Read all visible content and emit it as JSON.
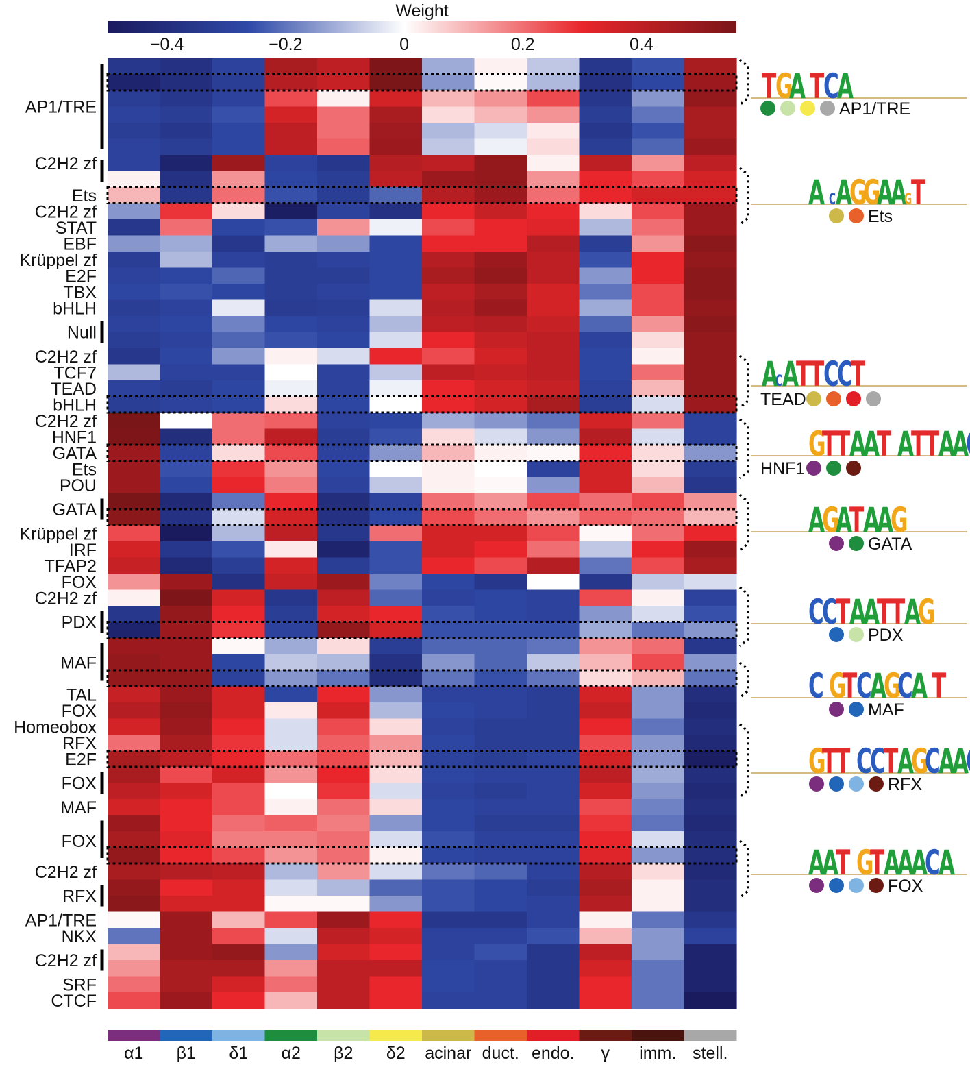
{
  "chart_data": {
    "type": "heatmap",
    "title": "",
    "colorbar": {
      "label": "Weight",
      "ticks": [
        "−0.4",
        "−0.2",
        "0",
        "0.2",
        "0.4"
      ],
      "tick_values": [
        -0.4,
        -0.2,
        0,
        0.2,
        0.4
      ],
      "range": [
        -0.5,
        0.56
      ],
      "colors": [
        "#1a1a5e",
        "#2f4aa8",
        "#ffffff",
        "#e8262b",
        "#7a1518"
      ]
    },
    "columns": [
      "α1",
      "β1",
      "δ1",
      "α2",
      "β2",
      "δ2",
      "acinar",
      "duct.",
      "endo.",
      "γ",
      "imm.",
      "stell."
    ],
    "column_colors": [
      "#7b2d7e",
      "#2166b9",
      "#7fb4e2",
      "#1e8e3e",
      "#c8e3a8",
      "#f5e94b",
      "#cdb94a",
      "#e8612a",
      "#e21f26",
      "#6b1b12",
      "#4a130d",
      "#a8a8a8"
    ],
    "row_labels": [
      {
        "text": "AP1/TRE",
        "row": 3
      },
      {
        "text": "C2H2 zf",
        "row": 6.5
      },
      {
        "text": "Ets",
        "row": 8.5
      },
      {
        "text": "C2H2 zf",
        "row": 9.5
      },
      {
        "text": "STAT",
        "row": 10.5
      },
      {
        "text": "EBF",
        "row": 11.5
      },
      {
        "text": "Krüppel zf",
        "row": 12.5
      },
      {
        "text": "E2F",
        "row": 13.5
      },
      {
        "text": "TBX",
        "row": 14.5
      },
      {
        "text": "bHLH",
        "row": 15.5
      },
      {
        "text": "Null",
        "row": 17
      },
      {
        "text": "C2H2 zf",
        "row": 18.5
      },
      {
        "text": "TCF7",
        "row": 19.5
      },
      {
        "text": "TEAD",
        "row": 20.5
      },
      {
        "text": "bHLH",
        "row": 21.5
      },
      {
        "text": "C2H2 zf",
        "row": 22.5
      },
      {
        "text": "HNF1",
        "row": 23.5
      },
      {
        "text": "GATA",
        "row": 24.5
      },
      {
        "text": "Ets",
        "row": 25.5
      },
      {
        "text": "POU",
        "row": 26.5
      },
      {
        "text": "GATA",
        "row": 28
      },
      {
        "text": "Krüppel zf",
        "row": 29.5
      },
      {
        "text": "IRF",
        "row": 30.5
      },
      {
        "text": "TFAP2",
        "row": 31.5
      },
      {
        "text": "FOX",
        "row": 32.5
      },
      {
        "text": "C2H2 zf",
        "row": 33.5
      },
      {
        "text": "PDX",
        "row": 35
      },
      {
        "text": "MAF",
        "row": 37.5
      },
      {
        "text": "TAL",
        "row": 39.5
      },
      {
        "text": "FOX",
        "row": 40.5
      },
      {
        "text": "Homeobox",
        "row": 41.5
      },
      {
        "text": "RFX",
        "row": 42.5
      },
      {
        "text": "E2F",
        "row": 43.5
      },
      {
        "text": "FOX",
        "row": 45
      },
      {
        "text": "MAF",
        "row": 46.5
      },
      {
        "text": "FOX",
        "row": 48.6
      },
      {
        "text": "C2H2 zf",
        "row": 50.5
      },
      {
        "text": "RFX",
        "row": 52
      },
      {
        "text": "AP1/TRE",
        "row": 53.5
      },
      {
        "text": "NKX",
        "row": 54.5
      },
      {
        "text": "C2H2 zf",
        "row": 56
      },
      {
        "text": "SRF",
        "row": 57.5
      },
      {
        "text": "CTCF",
        "row": 58.5
      }
    ],
    "row_brackets": [
      [
        0,
        6
      ],
      [
        6,
        8
      ],
      [
        16,
        18
      ],
      [
        27,
        29
      ],
      [
        34,
        36
      ],
      [
        36,
        39
      ],
      [
        44,
        46
      ],
      [
        47,
        50
      ],
      [
        51,
        53
      ],
      [
        55,
        57
      ]
    ],
    "dashed_boxes": [
      [
        1,
        2
      ],
      [
        8,
        9
      ],
      [
        21,
        22
      ],
      [
        24,
        25
      ],
      [
        28,
        29
      ],
      [
        35,
        36
      ],
      [
        38,
        39
      ],
      [
        43,
        44
      ],
      [
        49,
        50
      ]
    ],
    "values": [
      [
        -0.35,
        -0.38,
        -0.3,
        0.45,
        0.4,
        0.55,
        -0.12,
        0.02,
        -0.08,
        -0.35,
        -0.25,
        0.45
      ],
      [
        -0.45,
        -0.4,
        -0.32,
        0.42,
        0.38,
        0.58,
        -0.15,
        0.01,
        -0.1,
        -0.38,
        -0.28,
        0.48
      ],
      [
        -0.32,
        -0.35,
        -0.3,
        0.25,
        0.02,
        0.35,
        0.1,
        0.15,
        0.25,
        -0.35,
        -0.15,
        0.5
      ],
      [
        -0.3,
        -0.32,
        -0.25,
        0.35,
        0.2,
        0.45,
        0.05,
        0.1,
        0.15,
        -0.32,
        -0.2,
        0.45
      ],
      [
        -0.32,
        -0.35,
        -0.28,
        0.4,
        0.2,
        0.47,
        -0.1,
        -0.05,
        0.03,
        -0.35,
        -0.25,
        0.45
      ],
      [
        -0.3,
        -0.32,
        -0.28,
        0.4,
        0.22,
        0.48,
        -0.08,
        -0.02,
        0.05,
        -0.32,
        -0.22,
        0.48
      ],
      [
        -0.3,
        -0.45,
        0.48,
        -0.3,
        -0.35,
        0.42,
        0.4,
        0.5,
        0.02,
        0.4,
        0.15,
        0.4
      ],
      [
        0.02,
        -0.38,
        0.15,
        -0.28,
        -0.32,
        0.4,
        0.48,
        0.5,
        0.15,
        0.3,
        0.25,
        0.35
      ],
      [
        0.1,
        -0.35,
        0.2,
        -0.25,
        -0.32,
        -0.22,
        0.42,
        0.48,
        0.2,
        0.3,
        0.35,
        0.35
      ],
      [
        -0.15,
        0.28,
        0.05,
        -0.48,
        -0.3,
        -0.38,
        0.3,
        0.38,
        0.3,
        0.05,
        0.25,
        0.48
      ],
      [
        -0.35,
        0.2,
        -0.28,
        -0.25,
        0.15,
        -0.02,
        0.25,
        0.3,
        0.32,
        -0.1,
        0.2,
        0.48
      ],
      [
        -0.15,
        -0.12,
        -0.35,
        -0.12,
        -0.15,
        -0.28,
        0.3,
        0.3,
        0.42,
        -0.32,
        0.15,
        0.52
      ],
      [
        -0.32,
        -0.1,
        -0.3,
        -0.32,
        -0.3,
        -0.28,
        0.42,
        0.48,
        0.4,
        -0.25,
        0.3,
        0.5
      ],
      [
        -0.3,
        -0.28,
        -0.22,
        -0.32,
        -0.32,
        -0.28,
        0.45,
        0.5,
        0.4,
        -0.15,
        0.3,
        0.52
      ],
      [
        -0.28,
        -0.25,
        -0.28,
        -0.32,
        -0.3,
        -0.28,
        0.4,
        0.45,
        0.35,
        -0.2,
        0.25,
        0.52
      ],
      [
        -0.32,
        -0.3,
        -0.03,
        -0.33,
        -0.32,
        -0.05,
        0.42,
        0.48,
        0.35,
        -0.12,
        0.25,
        0.5
      ],
      [
        -0.3,
        -0.28,
        -0.18,
        -0.28,
        -0.3,
        -0.1,
        0.4,
        0.42,
        0.38,
        -0.22,
        0.15,
        0.52
      ],
      [
        -0.32,
        -0.3,
        -0.22,
        -0.25,
        -0.28,
        -0.05,
        0.3,
        0.38,
        0.4,
        -0.3,
        0.05,
        0.5
      ],
      [
        -0.35,
        -0.28,
        -0.15,
        0.02,
        -0.05,
        0.3,
        0.25,
        0.35,
        0.4,
        -0.28,
        0.02,
        0.5
      ],
      [
        -0.1,
        -0.3,
        -0.3,
        0.0,
        -0.3,
        -0.08,
        0.4,
        0.38,
        0.4,
        -0.28,
        0.2,
        0.5
      ],
      [
        -0.3,
        -0.32,
        -0.28,
        -0.02,
        -0.3,
        -0.02,
        0.3,
        0.35,
        0.38,
        -0.3,
        0.1,
        0.5
      ],
      [
        -0.32,
        -0.3,
        -0.28,
        0.05,
        -0.28,
        0.0,
        0.3,
        0.35,
        0.45,
        -0.32,
        -0.05,
        0.48
      ],
      [
        0.58,
        0.0,
        0.2,
        0.22,
        -0.3,
        -0.28,
        -0.12,
        -0.15,
        -0.2,
        0.35,
        0.2,
        -0.3
      ],
      [
        0.55,
        -0.4,
        0.2,
        0.4,
        -0.32,
        -0.25,
        0.05,
        -0.05,
        -0.15,
        0.42,
        -0.05,
        -0.3
      ],
      [
        0.48,
        -0.3,
        0.05,
        0.25,
        -0.3,
        -0.15,
        0.1,
        0.02,
        0.01,
        0.3,
        0.05,
        -0.15
      ],
      [
        0.48,
        -0.25,
        0.28,
        0.15,
        -0.28,
        0.0,
        0.02,
        0.0,
        -0.3,
        0.35,
        0.05,
        -0.32
      ],
      [
        0.48,
        -0.28,
        0.3,
        0.18,
        -0.3,
        -0.08,
        0.02,
        0.01,
        -0.15,
        0.35,
        0.1,
        -0.35
      ],
      [
        0.58,
        -0.42,
        -0.2,
        0.3,
        -0.4,
        -0.3,
        0.2,
        0.15,
        0.25,
        0.2,
        0.25,
        0.15
      ],
      [
        0.52,
        -0.38,
        -0.05,
        0.35,
        -0.38,
        -0.28,
        0.25,
        0.2,
        0.15,
        0.22,
        0.2,
        0.1
      ],
      [
        0.25,
        -0.5,
        -0.1,
        0.4,
        -0.35,
        0.2,
        0.35,
        0.35,
        0.25,
        0.01,
        0.2,
        0.3
      ],
      [
        0.35,
        -0.35,
        -0.25,
        0.03,
        -0.45,
        -0.25,
        0.35,
        0.3,
        0.2,
        -0.08,
        0.3,
        0.48
      ],
      [
        0.38,
        -0.42,
        -0.32,
        0.35,
        -0.32,
        -0.25,
        0.3,
        0.25,
        0.42,
        -0.2,
        0.25,
        0.45
      ],
      [
        0.15,
        0.48,
        -0.38,
        0.38,
        0.48,
        -0.18,
        -0.28,
        -0.35,
        0.0,
        -0.35,
        -0.08,
        -0.05
      ],
      [
        0.02,
        0.55,
        0.35,
        -0.35,
        0.4,
        -0.22,
        -0.3,
        -0.28,
        -0.3,
        0.25,
        0.02,
        -0.3
      ],
      [
        -0.35,
        0.5,
        0.3,
        -0.32,
        0.35,
        0.3,
        -0.25,
        -0.28,
        -0.3,
        -0.15,
        -0.05,
        -0.25
      ],
      [
        -0.45,
        0.48,
        0.28,
        -0.3,
        0.5,
        0.35,
        -0.25,
        -0.25,
        -0.25,
        -0.12,
        -0.2,
        -0.15
      ],
      [
        0.48,
        0.48,
        0.01,
        -0.12,
        0.05,
        -0.32,
        -0.22,
        -0.22,
        -0.2,
        0.15,
        0.2,
        -0.35
      ],
      [
        0.5,
        0.48,
        -0.28,
        -0.08,
        -0.1,
        -0.38,
        -0.15,
        -0.22,
        -0.08,
        0.1,
        0.25,
        -0.15
      ],
      [
        0.5,
        0.5,
        -0.3,
        -0.15,
        -0.2,
        -0.4,
        -0.2,
        -0.25,
        -0.2,
        0.05,
        0.1,
        -0.2
      ],
      [
        0.38,
        0.48,
        0.35,
        -0.28,
        0.3,
        -0.15,
        -0.3,
        -0.3,
        -0.32,
        0.35,
        -0.15,
        -0.4
      ],
      [
        0.42,
        0.5,
        0.35,
        0.03,
        0.35,
        -0.1,
        -0.28,
        -0.3,
        -0.32,
        0.38,
        -0.15,
        -0.42
      ],
      [
        0.35,
        0.48,
        0.3,
        -0.05,
        0.25,
        0.05,
        -0.3,
        -0.32,
        -0.32,
        0.3,
        -0.2,
        -0.4
      ],
      [
        0.2,
        0.45,
        0.28,
        -0.05,
        0.22,
        0.15,
        -0.28,
        -0.32,
        -0.32,
        0.25,
        -0.15,
        -0.42
      ],
      [
        0.45,
        0.4,
        0.3,
        0.2,
        0.25,
        0.1,
        -0.3,
        -0.32,
        -0.3,
        0.35,
        -0.15,
        -0.48
      ],
      [
        0.45,
        0.25,
        0.35,
        0.15,
        0.3,
        0.05,
        -0.28,
        -0.3,
        -0.3,
        0.4,
        -0.12,
        -0.4
      ],
      [
        0.4,
        0.35,
        0.25,
        0.0,
        0.28,
        -0.05,
        -0.3,
        -0.32,
        -0.3,
        0.35,
        -0.15,
        -0.42
      ],
      [
        0.35,
        0.3,
        0.25,
        0.02,
        0.2,
        0.05,
        -0.28,
        -0.3,
        -0.3,
        0.25,
        -0.18,
        -0.4
      ],
      [
        0.48,
        0.3,
        0.2,
        0.22,
        0.18,
        -0.15,
        -0.28,
        -0.32,
        -0.32,
        0.28,
        -0.2,
        -0.42
      ],
      [
        0.45,
        0.32,
        0.18,
        0.18,
        0.2,
        -0.05,
        -0.25,
        -0.3,
        -0.3,
        0.3,
        -0.05,
        -0.4
      ],
      [
        0.5,
        0.3,
        0.25,
        0.15,
        0.2,
        0.02,
        -0.28,
        -0.3,
        -0.3,
        0.32,
        -0.15,
        -0.4
      ],
      [
        0.45,
        0.42,
        0.4,
        -0.1,
        0.15,
        -0.05,
        -0.2,
        -0.22,
        -0.3,
        0.42,
        0.05,
        -0.42
      ],
      [
        0.5,
        0.3,
        0.35,
        -0.05,
        -0.1,
        -0.22,
        -0.25,
        -0.28,
        -0.32,
        0.45,
        0.02,
        -0.4
      ],
      [
        0.52,
        0.35,
        0.35,
        0.01,
        0.01,
        -0.15,
        -0.25,
        -0.28,
        -0.3,
        0.42,
        0.02,
        -0.4
      ],
      [
        0.01,
        0.48,
        0.1,
        0.25,
        0.48,
        0.3,
        -0.35,
        -0.35,
        -0.3,
        0.02,
        -0.2,
        -0.35
      ],
      [
        -0.2,
        0.48,
        0.25,
        -0.05,
        0.4,
        0.35,
        -0.3,
        -0.3,
        -0.25,
        0.1,
        -0.15,
        -0.3
      ],
      [
        0.1,
        0.48,
        0.5,
        -0.15,
        0.35,
        0.3,
        -0.3,
        -0.25,
        -0.35,
        0.4,
        -0.15,
        -0.45
      ],
      [
        0.15,
        0.45,
        0.45,
        0.15,
        0.4,
        0.4,
        -0.28,
        -0.3,
        -0.35,
        0.35,
        -0.2,
        -0.45
      ],
      [
        0.2,
        0.45,
        0.35,
        0.2,
        0.4,
        0.3,
        -0.28,
        -0.3,
        -0.35,
        0.3,
        -0.2,
        -0.45
      ],
      [
        0.25,
        0.48,
        0.3,
        0.1,
        0.4,
        0.3,
        -0.3,
        -0.3,
        -0.35,
        0.3,
        -0.2,
        -0.5
      ]
    ]
  },
  "motifs": [
    {
      "family": "AP1/TRE",
      "letters": "TGA TCA",
      "circles": [
        "#1e8e3e",
        "#c8e3a8",
        "#f5e94b",
        "#a8a8a8"
      ],
      "label_side": "right"
    },
    {
      "family": "Ets",
      "letters": "A cAGGAAgT",
      "circles": [
        "#cdb94a",
        "#e8612a"
      ],
      "label_side": "right"
    },
    {
      "family": "TEAD",
      "letters": "AcATTCCT",
      "circles": [
        "#cdb94a",
        "#e8612a",
        "#e21f26",
        "#a8a8a8"
      ],
      "label_side": "left"
    },
    {
      "family": "HNF1",
      "letters": "GTTAAT ATTAAC",
      "circles": [
        "#7b2d7e",
        "#1e8e3e",
        "#6b1b12"
      ],
      "label_side": "left"
    },
    {
      "family": "GATA",
      "letters": "AGATAAG",
      "circles": [
        "#7b2d7e",
        "#1e8e3e"
      ],
      "label_side": "right"
    },
    {
      "family": "PDX",
      "letters": "CCTAATTAG",
      "circles": [
        "#2166b9",
        "#c8e3a8"
      ],
      "label_side": "right"
    },
    {
      "family": "MAF",
      "letters": "C GTCAGCA T",
      "circles": [
        "#7b2d7e",
        "#2166b9"
      ],
      "label_side": "right"
    },
    {
      "family": "RFX",
      "letters": "GTT CCTAGCAAC",
      "circles": [
        "#7b2d7e",
        "#2166b9",
        "#7fb4e2",
        "#6b1b12"
      ],
      "label_side": "right"
    },
    {
      "family": "FOX",
      "letters": "AAT GTAAACA",
      "circles": [
        "#7b2d7e",
        "#2166b9",
        "#7fb4e2",
        "#6b1b12"
      ],
      "label_side": "right"
    }
  ],
  "motif_colors": {
    "A": "#1f9e3a",
    "C": "#2a5bbf",
    "G": "#f2a71b",
    "T": "#e32b2b"
  }
}
